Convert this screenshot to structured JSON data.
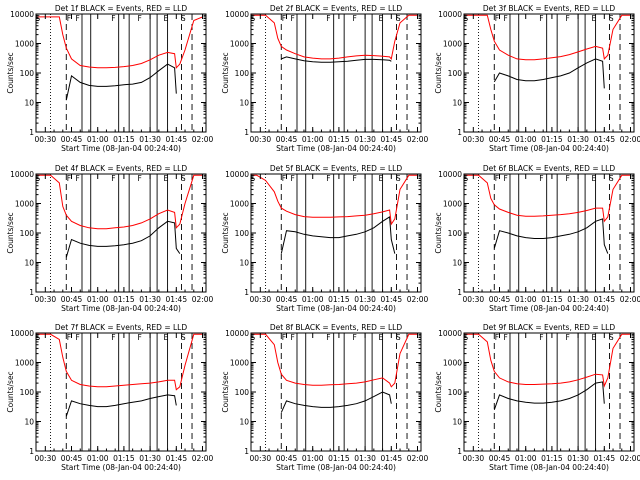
{
  "figure": {
    "background": "#ffffff",
    "axes_color": "#000000",
    "events_color": "#000000",
    "lld_color": "#ff0000"
  },
  "chart_data": [
    {
      "type": "line",
      "title": "Det 1f BLACK = Events, RED = LLD",
      "xlabel": "Start Time (08-Jan-04 00:24:40)",
      "ylabel": "Counts/sec",
      "x_ticks": [
        "00:30",
        "00:45",
        "01:00",
        "01:15",
        "01:30",
        "01:45",
        "02:00"
      ],
      "y_ticks": [
        "1",
        "10",
        "100",
        "1000",
        "10000"
      ],
      "ylim": [
        1,
        10000
      ],
      "y_scale": "log",
      "grid": false,
      "top_markers": [
        "S",
        "F",
        "F",
        "F",
        "F",
        "E",
        "S"
      ],
      "x": [
        "00:24",
        "00:28",
        "00:33",
        "00:38",
        "00:40",
        "00:42",
        "00:45",
        "00:50",
        "00:55",
        "01:00",
        "01:05",
        "01:10",
        "01:15",
        "01:20",
        "01:25",
        "01:30",
        "01:35",
        "01:40",
        "01:44",
        "01:45",
        "01:47",
        "01:50",
        "01:55",
        "02:00"
      ],
      "series": [
        {
          "name": "Events",
          "values": [
            null,
            null,
            null,
            null,
            null,
            12,
            80,
            48,
            38,
            35,
            35,
            37,
            40,
            42,
            48,
            70,
            120,
            200,
            150,
            20,
            null,
            null,
            null,
            null
          ]
        },
        {
          "name": "LLD",
          "values": [
            8000,
            8000,
            8000,
            8000,
            2000,
            700,
            300,
            180,
            160,
            150,
            150,
            155,
            165,
            180,
            210,
            280,
            400,
            500,
            450,
            150,
            200,
            600,
            6000,
            8000
          ]
        }
      ]
    },
    {
      "type": "line",
      "title": "Det 2f BLACK = Events, RED = LLD",
      "xlabel": "Start Time (08-Jan-04 00:24:40)",
      "ylabel": "Counts/sec",
      "x_ticks": [
        "00:30",
        "00:45",
        "01:00",
        "01:15",
        "01:30",
        "01:45",
        "02:00"
      ],
      "y_ticks": [
        "1",
        "10",
        "100",
        "1000",
        "10000"
      ],
      "ylim": [
        1,
        10000
      ],
      "y_scale": "log",
      "grid": false,
      "top_markers": [
        "S",
        "F",
        "F",
        "F",
        "F",
        "E",
        "S"
      ],
      "x": [
        "00:24",
        "00:28",
        "00:33",
        "00:38",
        "00:40",
        "00:42",
        "00:45",
        "00:50",
        "00:55",
        "01:00",
        "01:05",
        "01:10",
        "01:15",
        "01:20",
        "01:25",
        "01:30",
        "01:35",
        "01:40",
        "01:44",
        "01:45",
        "01:47",
        "01:50",
        "01:55",
        "02:00"
      ],
      "series": [
        {
          "name": "Events",
          "values": [
            null,
            null,
            null,
            null,
            null,
            300,
            350,
            300,
            260,
            240,
            230,
            230,
            240,
            250,
            270,
            290,
            290,
            280,
            270,
            250,
            null,
            null,
            null,
            null
          ]
        },
        {
          "name": "LLD",
          "values": [
            9000,
            9000,
            9000,
            5000,
            1500,
            800,
            600,
            450,
            350,
            320,
            300,
            300,
            320,
            350,
            380,
            400,
            390,
            370,
            350,
            300,
            1200,
            5000,
            9000,
            9000
          ]
        }
      ]
    },
    {
      "type": "line",
      "title": "Det 3f BLACK = Events, RED = LLD",
      "xlabel": "Start Time (08-Jan-04 00:24:40)",
      "ylabel": "Counts/sec",
      "x_ticks": [
        "00:30",
        "00:45",
        "01:00",
        "01:15",
        "01:30",
        "01:45",
        "02:00"
      ],
      "y_ticks": [
        "1",
        "10",
        "100",
        "1000",
        "10000"
      ],
      "ylim": [
        1,
        10000
      ],
      "y_scale": "log",
      "grid": false,
      "top_markers": [
        "S",
        "F",
        "F",
        "F",
        "F",
        "E",
        "S"
      ],
      "x": [
        "00:24",
        "00:28",
        "00:33",
        "00:38",
        "00:40",
        "00:42",
        "00:45",
        "00:50",
        "00:55",
        "01:00",
        "01:05",
        "01:10",
        "01:15",
        "01:20",
        "01:25",
        "01:30",
        "01:35",
        "01:40",
        "01:44",
        "01:45",
        "01:47",
        "01:50",
        "01:55",
        "02:00"
      ],
      "series": [
        {
          "name": "Events",
          "values": [
            null,
            null,
            null,
            null,
            null,
            50,
            100,
            80,
            60,
            55,
            55,
            60,
            70,
            80,
            100,
            150,
            220,
            300,
            250,
            30,
            null,
            null,
            null,
            null
          ]
        },
        {
          "name": "LLD",
          "values": [
            9000,
            9000,
            9000,
            9000,
            3000,
            1200,
            600,
            400,
            300,
            280,
            280,
            300,
            330,
            360,
            420,
            520,
            650,
            800,
            700,
            300,
            400,
            3000,
            9000,
            9000
          ]
        }
      ]
    },
    {
      "type": "line",
      "title": "Det 4f BLACK = Events, RED = LLD",
      "xlabel": "Start Time (08-Jan-04 00:24:40)",
      "ylabel": "Counts/sec",
      "x_ticks": [
        "00:30",
        "00:45",
        "01:00",
        "01:15",
        "01:30",
        "01:45",
        "02:00"
      ],
      "y_ticks": [
        "1",
        "10",
        "100",
        "1000",
        "10000"
      ],
      "ylim": [
        1,
        10000
      ],
      "y_scale": "log",
      "grid": false,
      "top_markers": [
        "S",
        "F",
        "F",
        "F",
        "F",
        "E",
        "S"
      ],
      "x": [
        "00:24",
        "00:28",
        "00:33",
        "00:38",
        "00:40",
        "00:42",
        "00:45",
        "00:50",
        "00:55",
        "01:00",
        "01:05",
        "01:10",
        "01:15",
        "01:20",
        "01:25",
        "01:30",
        "01:35",
        "01:40",
        "01:44",
        "01:45",
        "01:47",
        "01:50",
        "01:55",
        "02:00"
      ],
      "series": [
        {
          "name": "Events",
          "values": [
            null,
            null,
            null,
            null,
            null,
            15,
            60,
            45,
            38,
            35,
            35,
            37,
            40,
            45,
            55,
            80,
            150,
            250,
            220,
            30,
            20,
            null,
            null,
            null
          ]
        },
        {
          "name": "LLD",
          "values": [
            9000,
            9000,
            9000,
            5000,
            800,
            400,
            250,
            180,
            150,
            140,
            140,
            150,
            160,
            180,
            220,
            300,
            450,
            600,
            500,
            150,
            200,
            1000,
            9000,
            9000
          ]
        }
      ]
    },
    {
      "type": "line",
      "title": "Det 5f BLACK = Events, RED = LLD",
      "xlabel": "Start Time (08-Jan-04 00:24:40)",
      "ylabel": "Counts/sec",
      "x_ticks": [
        "00:30",
        "00:45",
        "01:00",
        "01:15",
        "01:30",
        "01:45",
        "02:00"
      ],
      "y_ticks": [
        "1",
        "10",
        "100",
        "1000",
        "10000"
      ],
      "ylim": [
        1,
        10000
      ],
      "y_scale": "log",
      "grid": false,
      "top_markers": [
        "S",
        "F",
        "F",
        "F",
        "F",
        "E",
        "S"
      ],
      "x": [
        "00:24",
        "00:28",
        "00:33",
        "00:38",
        "00:40",
        "00:42",
        "00:45",
        "00:50",
        "00:55",
        "01:00",
        "01:05",
        "01:10",
        "01:15",
        "01:20",
        "01:25",
        "01:30",
        "01:35",
        "01:40",
        "01:44",
        "01:45",
        "01:47",
        "01:50",
        "01:55",
        "02:00"
      ],
      "series": [
        {
          "name": "Events",
          "values": [
            null,
            null,
            null,
            null,
            null,
            20,
            120,
            110,
            90,
            80,
            75,
            70,
            70,
            80,
            90,
            110,
            150,
            250,
            350,
            60,
            20,
            null,
            null,
            null
          ]
        },
        {
          "name": "LLD",
          "values": [
            9000,
            9000,
            6000,
            2500,
            1200,
            700,
            550,
            420,
            360,
            340,
            340,
            340,
            350,
            360,
            380,
            400,
            450,
            520,
            600,
            200,
            300,
            3000,
            9000,
            9000
          ]
        }
      ]
    },
    {
      "type": "line",
      "title": "Det 6f BLACK = Events, RED = LLD",
      "xlabel": "Start Time (08-Jan-04 00:24:40)",
      "ylabel": "Counts/sec",
      "x_ticks": [
        "00:30",
        "00:45",
        "01:00",
        "01:15",
        "01:30",
        "01:45",
        "02:00"
      ],
      "y_ticks": [
        "1",
        "10",
        "100",
        "1000",
        "10000"
      ],
      "ylim": [
        1,
        10000
      ],
      "y_scale": "log",
      "grid": false,
      "top_markers": [
        "S",
        "F",
        "F",
        "F",
        "F",
        "E",
        "S"
      ],
      "x": [
        "00:24",
        "00:28",
        "00:33",
        "00:38",
        "00:40",
        "00:42",
        "00:45",
        "00:50",
        "00:55",
        "01:00",
        "01:05",
        "01:10",
        "01:15",
        "01:20",
        "01:25",
        "01:30",
        "01:35",
        "01:40",
        "01:44",
        "01:45",
        "01:47",
        "01:50",
        "01:55",
        "02:00"
      ],
      "series": [
        {
          "name": "Events",
          "values": [
            null,
            null,
            null,
            null,
            null,
            30,
            120,
            100,
            80,
            70,
            65,
            65,
            70,
            80,
            90,
            110,
            150,
            250,
            300,
            40,
            20,
            null,
            null,
            null
          ]
        },
        {
          "name": "LLD",
          "values": [
            9000,
            9000,
            9000,
            5000,
            1500,
            900,
            650,
            500,
            400,
            370,
            370,
            380,
            400,
            420,
            450,
            500,
            580,
            700,
            700,
            250,
            350,
            3000,
            9000,
            9000
          ]
        }
      ]
    },
    {
      "type": "line",
      "title": "Det 7f BLACK = Events, RED = LLD",
      "xlabel": "Start Time (08-Jan-04 00:24:40)",
      "ylabel": "Counts/sec",
      "x_ticks": [
        "00:30",
        "00:45",
        "01:00",
        "01:15",
        "01:30",
        "01:45",
        "02:00"
      ],
      "y_ticks": [
        "1",
        "10",
        "100",
        "1000",
        "10000"
      ],
      "ylim": [
        1,
        10000
      ],
      "y_scale": "log",
      "grid": false,
      "top_markers": [
        "S",
        "F",
        "F",
        "F",
        "F",
        "E",
        "S"
      ],
      "x": [
        "00:24",
        "00:28",
        "00:33",
        "00:38",
        "00:40",
        "00:42",
        "00:45",
        "00:50",
        "00:55",
        "01:00",
        "01:05",
        "01:10",
        "01:15",
        "01:20",
        "01:25",
        "01:30",
        "01:35",
        "01:40",
        "01:44",
        "01:45",
        "01:47",
        "01:50",
        "01:55",
        "02:00"
      ],
      "series": [
        {
          "name": "Events",
          "values": [
            null,
            null,
            null,
            null,
            null,
            15,
            50,
            40,
            35,
            32,
            32,
            35,
            40,
            45,
            50,
            60,
            70,
            80,
            75,
            35,
            null,
            null,
            null,
            null
          ]
        },
        {
          "name": "LLD",
          "values": [
            9000,
            9000,
            9000,
            6000,
            1500,
            500,
            250,
            180,
            160,
            150,
            150,
            160,
            170,
            180,
            190,
            200,
            220,
            250,
            250,
            120,
            150,
            800,
            9000,
            9000
          ]
        }
      ]
    },
    {
      "type": "line",
      "title": "Det 8f BLACK = Events, RED = LLD",
      "xlabel": "Start Time (08-Jan-04 00:24:40)",
      "ylabel": "Counts/sec",
      "x_ticks": [
        "00:30",
        "00:45",
        "01:00",
        "01:15",
        "01:30",
        "01:45",
        "02:00"
      ],
      "y_ticks": [
        "1",
        "10",
        "100",
        "1000",
        "10000"
      ],
      "ylim": [
        1,
        10000
      ],
      "y_scale": "log",
      "grid": false,
      "top_markers": [
        "S",
        "F",
        "F",
        "F",
        "F",
        "E",
        "S"
      ],
      "x": [
        "00:24",
        "00:28",
        "00:33",
        "00:38",
        "00:40",
        "00:42",
        "00:45",
        "00:50",
        "00:55",
        "01:00",
        "01:05",
        "01:10",
        "01:15",
        "01:20",
        "01:25",
        "01:30",
        "01:35",
        "01:40",
        "01:44",
        "01:45",
        "01:47",
        "01:50",
        "01:55",
        "02:00"
      ],
      "series": [
        {
          "name": "Events",
          "values": [
            null,
            null,
            null,
            null,
            null,
            20,
            50,
            40,
            35,
            32,
            30,
            30,
            32,
            35,
            40,
            50,
            70,
            100,
            80,
            40,
            null,
            null,
            null,
            null
          ]
        },
        {
          "name": "LLD",
          "values": [
            9000,
            9000,
            9000,
            4000,
            1000,
            400,
            250,
            200,
            180,
            170,
            170,
            175,
            180,
            190,
            200,
            220,
            260,
            300,
            200,
            150,
            200,
            2000,
            9000,
            9000
          ]
        }
      ]
    },
    {
      "type": "line",
      "title": "Det 9f BLACK = Events, RED = LLD",
      "xlabel": "Start Time (08-Jan-04 00:24:40)",
      "ylabel": "Counts/sec",
      "x_ticks": [
        "00:30",
        "00:45",
        "01:00",
        "01:15",
        "01:30",
        "01:45",
        "02:00"
      ],
      "y_ticks": [
        "1",
        "10",
        "100",
        "1000",
        "10000"
      ],
      "ylim": [
        1,
        10000
      ],
      "y_scale": "log",
      "grid": false,
      "top_markers": [
        "S",
        "F",
        "F",
        "F",
        "F",
        "E",
        "S"
      ],
      "x": [
        "00:24",
        "00:28",
        "00:33",
        "00:38",
        "00:40",
        "00:42",
        "00:45",
        "00:50",
        "00:55",
        "01:00",
        "01:05",
        "01:10",
        "01:15",
        "01:20",
        "01:25",
        "01:30",
        "01:35",
        "01:40",
        "01:44",
        "01:45",
        "01:47",
        "01:50",
        "01:55",
        "02:00"
      ],
      "series": [
        {
          "name": "Events",
          "values": [
            null,
            null,
            null,
            null,
            null,
            25,
            80,
            60,
            50,
            45,
            42,
            42,
            45,
            50,
            60,
            80,
            120,
            200,
            220,
            40,
            null,
            null,
            null,
            null
          ]
        },
        {
          "name": "LLD",
          "values": [
            9000,
            9000,
            9000,
            5000,
            1200,
            500,
            300,
            220,
            190,
            180,
            180,
            185,
            190,
            200,
            220,
            260,
            320,
            400,
            380,
            160,
            300,
            3000,
            9000,
            9000
          ]
        }
      ]
    }
  ]
}
